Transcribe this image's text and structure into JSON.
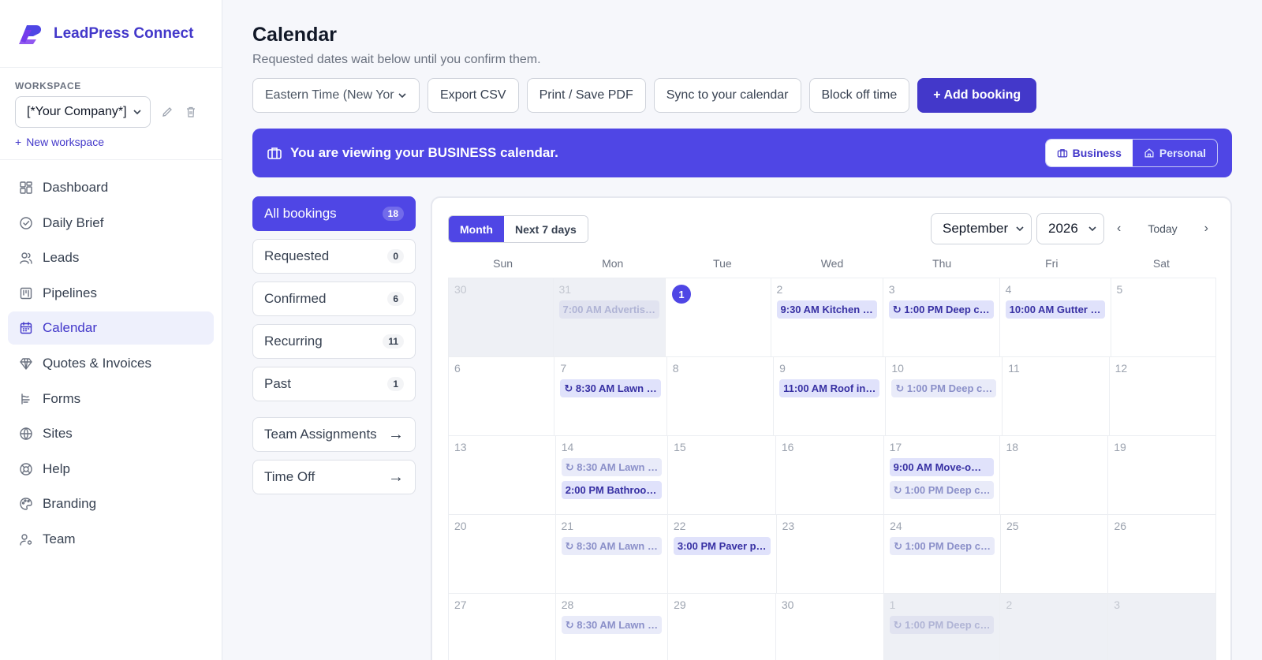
{
  "brand": {
    "name": "LeadPress Connect"
  },
  "workspace": {
    "label": "WORKSPACE",
    "selected": "[*Your Company*]",
    "new_label": "New workspace"
  },
  "nav": [
    {
      "label": "Dashboard",
      "icon": "grid-icon"
    },
    {
      "label": "Daily Brief",
      "icon": "check-circle-icon"
    },
    {
      "label": "Leads",
      "icon": "users-icon"
    },
    {
      "label": "Pipelines",
      "icon": "kanban-icon"
    },
    {
      "label": "Calendar",
      "icon": "calendar-icon",
      "active": true
    },
    {
      "label": "Quotes & Invoices",
      "icon": "gem-icon"
    },
    {
      "label": "Forms",
      "icon": "form-icon"
    },
    {
      "label": "Sites",
      "icon": "globe-icon"
    },
    {
      "label": "Help",
      "icon": "lifebuoy-icon"
    },
    {
      "label": "Branding",
      "icon": "palette-icon"
    },
    {
      "label": "Team",
      "icon": "user-gear-icon"
    }
  ],
  "page": {
    "title": "Calendar",
    "subtitle": "Requested dates wait below until you confirm them."
  },
  "toolbar": {
    "timezone": "Eastern Time (New Yor",
    "export": "Export CSV",
    "print": "Print / Save PDF",
    "sync": "Sync to your calendar",
    "block": "Block off time",
    "add": "+ Add booking"
  },
  "banner": {
    "text": "You are viewing your BUSINESS calendar.",
    "business": "Business",
    "personal": "Personal"
  },
  "filters": [
    {
      "label": "All bookings",
      "count": "18",
      "active": true
    },
    {
      "label": "Requested",
      "count": "0"
    },
    {
      "label": "Confirmed",
      "count": "6"
    },
    {
      "label": "Recurring",
      "count": "11"
    },
    {
      "label": "Past",
      "count": "1"
    }
  ],
  "links": [
    {
      "label": "Team Assignments",
      "arrow": "→"
    },
    {
      "label": "Time Off",
      "arrow": "→"
    }
  ],
  "calendar": {
    "view_month": "Month",
    "view_week": "Next 7 days",
    "month": "September",
    "year": "2026",
    "prev": "‹",
    "today": "Today",
    "next": "›",
    "weekdays": [
      "Sun",
      "Mon",
      "Tue",
      "Wed",
      "Thu",
      "Fri",
      "Sat"
    ],
    "weeks": [
      [
        {
          "d": "30",
          "out": true
        },
        {
          "d": "31",
          "out": true,
          "events": [
            {
              "t": "7:00 AM Advertis…",
              "faded": true
            }
          ]
        },
        {
          "d": "1",
          "today": true
        },
        {
          "d": "2",
          "events": [
            {
              "t": "9:30 AM Kitchen …"
            }
          ]
        },
        {
          "d": "3",
          "events": [
            {
              "t": "↻ 1:00 PM Deep c…"
            }
          ]
        },
        {
          "d": "4",
          "events": [
            {
              "t": "10:00 AM Gutter …"
            }
          ]
        },
        {
          "d": "5"
        }
      ],
      [
        {
          "d": "6"
        },
        {
          "d": "7",
          "events": [
            {
              "t": "↻ 8:30 AM Lawn …"
            }
          ]
        },
        {
          "d": "8"
        },
        {
          "d": "9",
          "events": [
            {
              "t": "11:00 AM Roof in…"
            }
          ]
        },
        {
          "d": "10",
          "events": [
            {
              "t": "↻ 1:00 PM Deep c…",
              "faded": true
            }
          ]
        },
        {
          "d": "11"
        },
        {
          "d": "12"
        }
      ],
      [
        {
          "d": "13"
        },
        {
          "d": "14",
          "events": [
            {
              "t": "↻ 8:30 AM Lawn …",
              "faded": true
            },
            {
              "t": "2:00 PM Bathroo…"
            }
          ]
        },
        {
          "d": "15"
        },
        {
          "d": "16"
        },
        {
          "d": "17",
          "events": [
            {
              "t": "9:00 AM Move-o…"
            },
            {
              "t": "↻ 1:00 PM Deep c…",
              "faded": true
            }
          ]
        },
        {
          "d": "18"
        },
        {
          "d": "19"
        }
      ],
      [
        {
          "d": "20"
        },
        {
          "d": "21",
          "events": [
            {
              "t": "↻ 8:30 AM Lawn …",
              "faded": true
            }
          ]
        },
        {
          "d": "22",
          "events": [
            {
              "t": "3:00 PM Paver p…"
            }
          ]
        },
        {
          "d": "23"
        },
        {
          "d": "24",
          "events": [
            {
              "t": "↻ 1:00 PM Deep c…",
              "faded": true
            }
          ]
        },
        {
          "d": "25"
        },
        {
          "d": "26"
        }
      ],
      [
        {
          "d": "27"
        },
        {
          "d": "28",
          "events": [
            {
              "t": "↻ 8:30 AM Lawn …",
              "faded": true
            }
          ]
        },
        {
          "d": "29"
        },
        {
          "d": "30"
        },
        {
          "d": "1",
          "out": true,
          "events": [
            {
              "t": "↻ 1:00 PM Deep c…",
              "faded": true
            }
          ]
        },
        {
          "d": "2",
          "out": true
        },
        {
          "d": "3",
          "out": true
        }
      ]
    ]
  }
}
